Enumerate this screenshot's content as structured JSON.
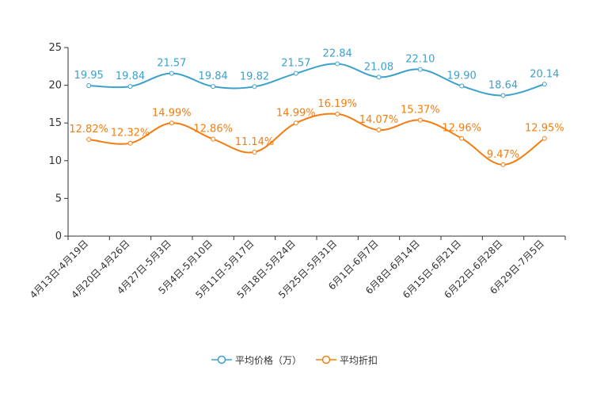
{
  "chart_data": {
    "type": "line",
    "categories": [
      "4月13日-4月19日",
      "4月20日-4月26日",
      "4月27日-5月3日",
      "5月4日-5月10日",
      "5月11日-5月17日",
      "5月18日-5月24日",
      "5月25日-5月31日",
      "6月1日-6月7日",
      "6月8日-6月14日",
      "6月15日-6月21日",
      "6月22日-6月28日",
      "6月29日-7月5日"
    ],
    "ylim": [
      0,
      25
    ],
    "yticks": [
      0,
      5,
      10,
      15,
      20,
      25
    ],
    "series": [
      {
        "name": "平均价格（万）",
        "color": "#3ba1cb",
        "values": [
          19.95,
          19.84,
          21.57,
          19.84,
          19.82,
          21.57,
          22.84,
          21.08,
          22.1,
          19.9,
          18.64,
          20.14
        ],
        "labels": [
          "19.95",
          "19.84",
          "21.57",
          "19.84",
          "19.82",
          "21.57",
          "22.84",
          "21.08",
          "22.10",
          "19.90",
          "18.64",
          "20.14"
        ]
      },
      {
        "name": "平均折扣",
        "color": "#f57d10",
        "values": [
          12.82,
          12.32,
          14.99,
          12.86,
          11.14,
          14.99,
          16.19,
          14.07,
          15.37,
          12.96,
          9.47,
          12.95
        ],
        "labels": [
          "12.82%",
          "12.32%",
          "14.99%",
          "12.86%",
          "11.14%",
          "14.99%",
          "16.19%",
          "14.07%",
          "15.37%",
          "12.96%",
          "9.47%",
          "12.95%"
        ]
      }
    ]
  }
}
